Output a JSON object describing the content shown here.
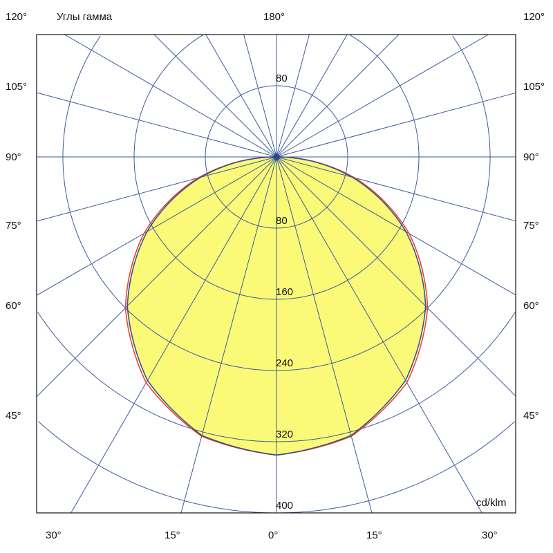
{
  "chart_data": {
    "type": "polar",
    "title": "Углы гамма",
    "unit": "cd/klm",
    "top_labels": {
      "left": "120°",
      "center": "180°",
      "right": "120°"
    },
    "side_labels": [
      "105°",
      "90°",
      "75°",
      "60°",
      "45°"
    ],
    "bottom_labels": [
      "30°",
      "15°",
      "0°",
      "15°",
      "30°"
    ],
    "radial_ticks": [
      80,
      160,
      240,
      320,
      400
    ],
    "radial_labels": [
      "80",
      "160",
      "240",
      "320",
      "400"
    ],
    "upper_radial_label": "80",
    "angle_step_deg": 15,
    "fill_color": "#fafa78",
    "grid_color": "#3a5a9a",
    "series": [
      {
        "color": "#e8452a",
        "gamma": [
          0,
          15,
          30,
          45,
          60,
          75,
          90
        ],
        "values": [
          335,
          325,
          293,
          240,
          172,
          91,
          0
        ]
      },
      {
        "color": "#3a4f8a",
        "gamma": [
          0,
          15,
          30,
          45,
          60,
          75,
          90
        ],
        "values": [
          335,
          324,
          290,
          237,
          168,
          88,
          0
        ]
      }
    ]
  }
}
